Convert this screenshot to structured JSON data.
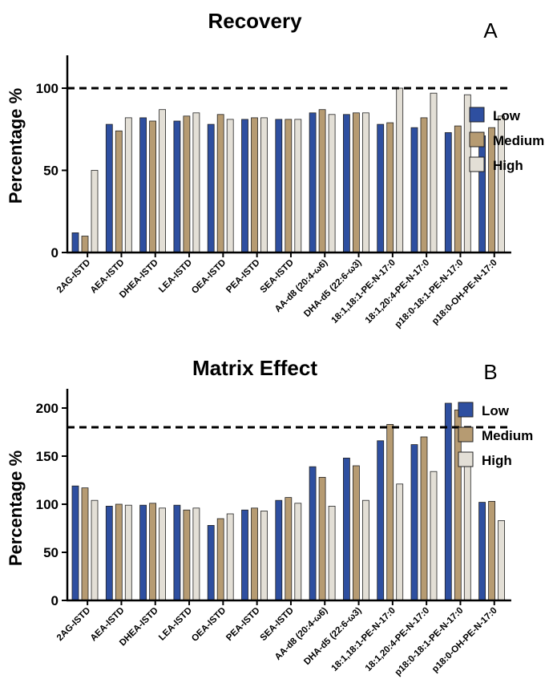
{
  "chart_data": [
    {
      "type": "bar",
      "panel_label": "A",
      "title": "Recovery",
      "xlabel": "",
      "ylabel": "Percentage %",
      "ylim": [
        0,
        120
      ],
      "yticks": [
        0,
        50,
        100
      ],
      "reference_line": 100,
      "grid": false,
      "legend_position": "right",
      "categories": [
        "2AG-ISTD",
        "AEA-ISTD",
        "DHEA-ISTD",
        "LEA-ISTD",
        "OEA-ISTD",
        "PEA-ISTD",
        "SEA-ISTD",
        "AA-d8 (20:4-ω6)",
        "DHA-d5 (22:6-ω3)",
        "18:1,18:1-PE-N-17:0",
        "18:1,20:4-PE-N-17:0",
        "p18:0-18:1-PE-N-17:0",
        "p18:0-OH-PE-N-17:0"
      ],
      "series": [
        {
          "name": "Low",
          "color": "#2E4FA0",
          "values": [
            12,
            78,
            82,
            80,
            78,
            81,
            81,
            85,
            84,
            78,
            76,
            73,
            71
          ]
        },
        {
          "name": "Medium",
          "color": "#B69B72",
          "values": [
            10,
            74,
            80,
            83,
            84,
            82,
            81,
            87,
            85,
            79,
            82,
            77,
            76
          ]
        },
        {
          "name": "High",
          "color": "#E3DFD6",
          "values": [
            50,
            82,
            87,
            85,
            81,
            82,
            81,
            84,
            85,
            100,
            97,
            96,
            83
          ]
        }
      ]
    },
    {
      "type": "bar",
      "panel_label": "B",
      "title": "Matrix Effect",
      "xlabel": "",
      "ylabel": "Percentage %",
      "ylim": [
        0,
        220
      ],
      "yticks": [
        0,
        50,
        100,
        150,
        200
      ],
      "reference_line": 180,
      "grid": false,
      "legend_position": "top-right",
      "categories": [
        "2AG-ISTD",
        "AEA-ISTD",
        "DHEA-ISTD",
        "LEA-ISTD",
        "OEA-ISTD",
        "PEA-ISTD",
        "SEA-ISTD",
        "AA-d8 (20:4-ω6)",
        "DHA-d5 (22:6-ω3)",
        "18:1,18:1-PE-N-17:0",
        "18:1,20:4-PE-N-17:0",
        "p18:0-18:1-PE-N-17:0",
        "p18:0-OH-PE-N-17:0"
      ],
      "series": [
        {
          "name": "Low",
          "color": "#2E4FA0",
          "values": [
            119,
            98,
            99,
            99,
            78,
            94,
            104,
            139,
            148,
            166,
            162,
            205,
            102
          ]
        },
        {
          "name": "Medium",
          "color": "#B69B72",
          "values": [
            117,
            100,
            101,
            94,
            85,
            96,
            107,
            128,
            140,
            183,
            170,
            198,
            103
          ]
        },
        {
          "name": "High",
          "color": "#E3DFD6",
          "values": [
            104,
            99,
            96,
            96,
            90,
            93,
            101,
            98,
            104,
            121,
            134,
            145,
            83
          ]
        }
      ]
    }
  ]
}
